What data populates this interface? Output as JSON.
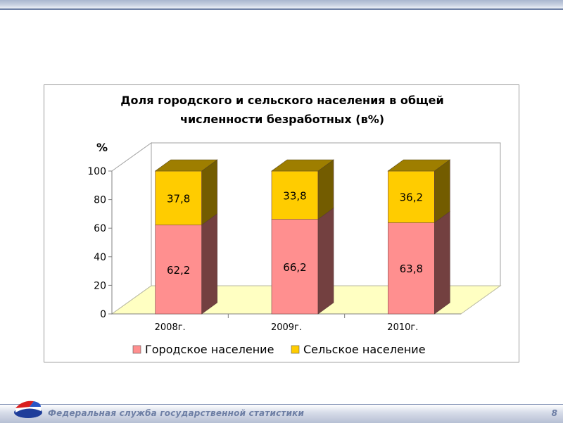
{
  "chart_data": {
    "type": "bar",
    "stacked": true,
    "three_d": true,
    "title": "Доля городского и сельского населения в общей численности безработных (в%)",
    "title_lines": [
      "Доля городского и сельского населения в общей",
      "численности безработных (в%)"
    ],
    "ylabel": "%",
    "ylim": [
      0,
      100
    ],
    "yticks": [
      "0",
      "20",
      "40",
      "60",
      "80",
      "100"
    ],
    "categories": [
      "2008г.",
      "2009г.",
      "2010г."
    ],
    "series": [
      {
        "name": "Городское население",
        "values": [
          62.2,
          66.2,
          63.8
        ],
        "labels": [
          "62,2",
          "66,2",
          "63,8"
        ],
        "color": "#ff8f8f"
      },
      {
        "name": "Сельское население",
        "values": [
          37.8,
          33.8,
          36.2
        ],
        "labels": [
          "37,8",
          "33,8",
          "36,2"
        ],
        "color": "#ffcc00"
      }
    ],
    "legend_position": "bottom",
    "floor_color": "#ffffc2"
  },
  "footer": {
    "text": "Федеральная служба государственной статистики",
    "page_number": "8"
  }
}
